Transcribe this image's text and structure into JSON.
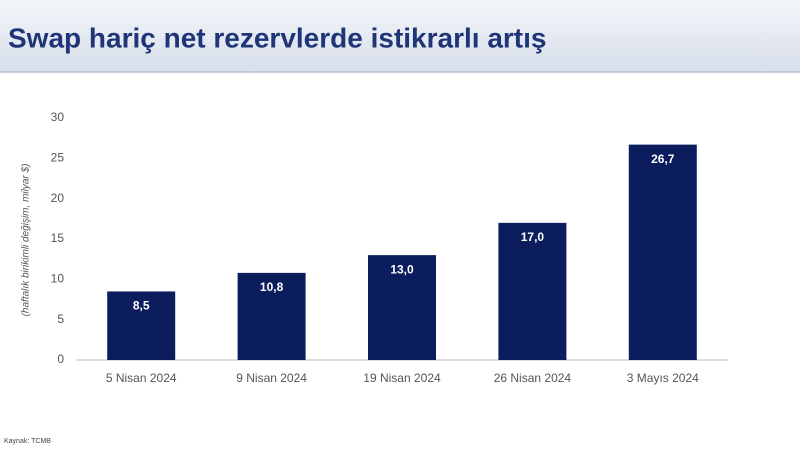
{
  "chart_data": {
    "type": "bar",
    "title": "Swap hariç net rezervlerde istikrarlı artış",
    "y_label": "(haftalık birikimli değişim, milyar $)",
    "source": "Kaynak: TCMB",
    "categories": [
      "5 Nisan 2024",
      "9 Nisan 2024",
      "19 Nisan 2024",
      "26 Nisan 2024",
      "3 Mayıs 2024"
    ],
    "values": [
      8.5,
      10.8,
      13.0,
      17.0,
      26.7
    ],
    "value_labels": [
      "8,5",
      "10,8",
      "13,0",
      "17,0",
      "26,7"
    ],
    "color": "#0c1d5e",
    "ylim": [
      0,
      30
    ],
    "yticks": [
      0,
      5,
      10,
      15,
      20,
      25,
      30
    ],
    "grid": false
  }
}
